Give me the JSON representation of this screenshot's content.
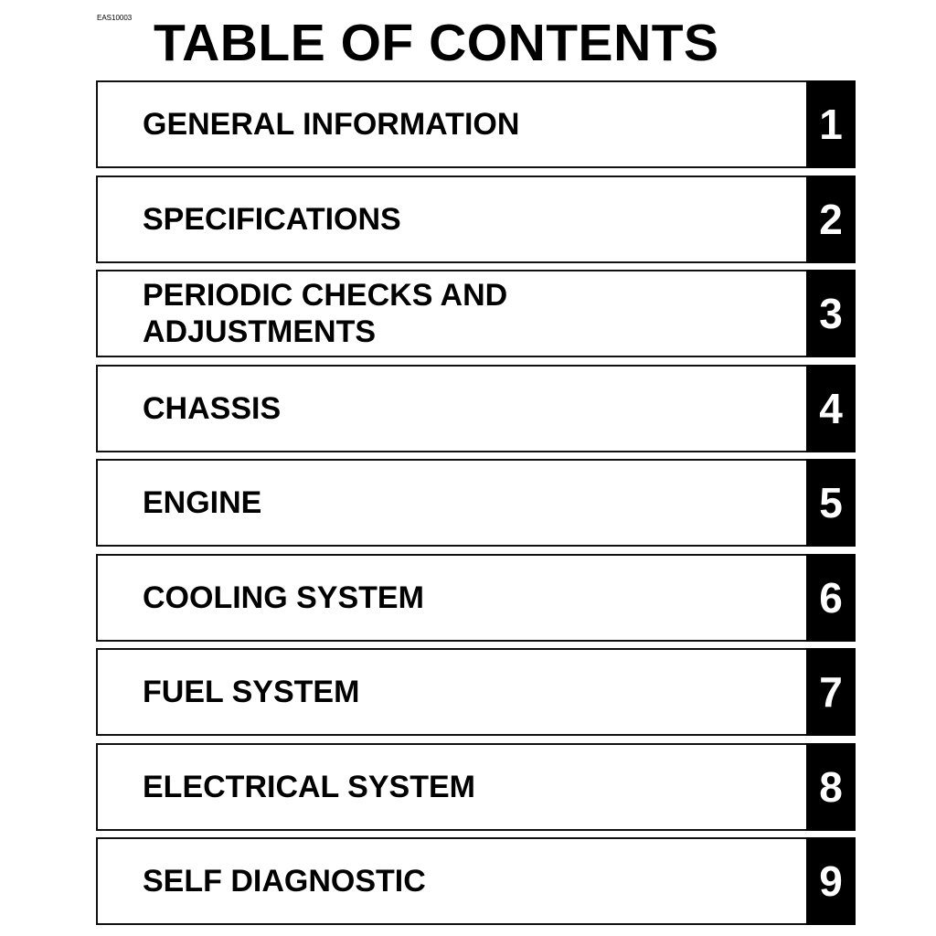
{
  "doc_code": "EAS10003",
  "title": "TABLE OF CONTENTS",
  "chapters": [
    {
      "label": "GENERAL INFORMATION",
      "number": "1"
    },
    {
      "label": "SPECIFICATIONS",
      "number": "2"
    },
    {
      "label": "PERIODIC CHECKS AND\nADJUSTMENTS",
      "number": "3"
    },
    {
      "label": "CHASSIS",
      "number": "4"
    },
    {
      "label": "ENGINE",
      "number": "5"
    },
    {
      "label": "COOLING SYSTEM",
      "number": "6"
    },
    {
      "label": "FUEL SYSTEM",
      "number": "7"
    },
    {
      "label": "ELECTRICAL SYSTEM",
      "number": "8"
    },
    {
      "label": "SELF DIAGNOSTIC",
      "number": "9"
    }
  ]
}
